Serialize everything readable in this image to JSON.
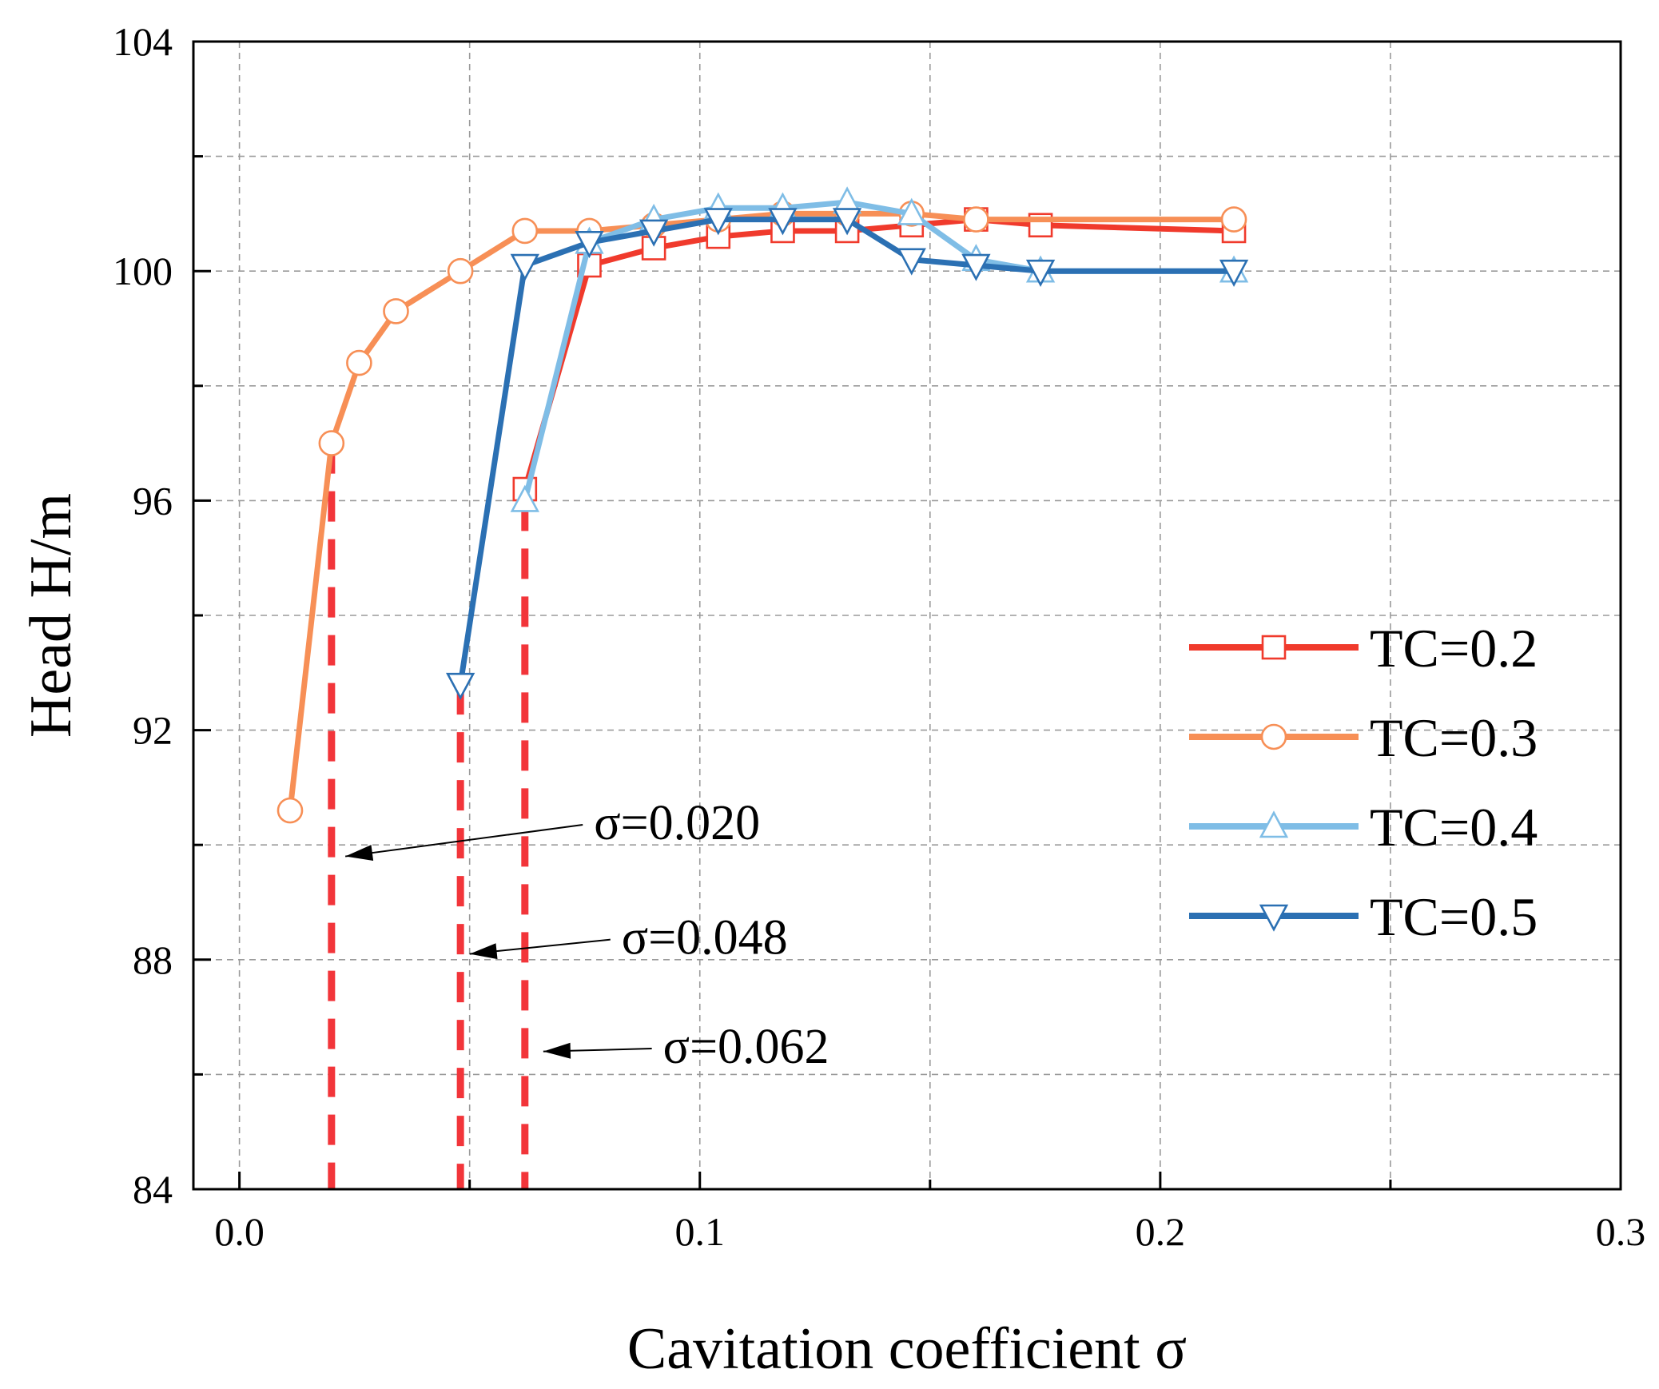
{
  "chart_data": {
    "type": "line",
    "xlabel": "Cavitation coefficient  σ",
    "ylabel": "Head  H/m",
    "xlim": [
      -0.01,
      0.3
    ],
    "ylim": [
      84,
      104
    ],
    "xticks": [
      0.0,
      0.1,
      0.2,
      0.3
    ],
    "xtick_labels": [
      "0.0",
      "0.1",
      "0.2",
      "0.3"
    ],
    "yticks": [
      84,
      88,
      92,
      96,
      100,
      104
    ],
    "ytick_labels": [
      "84",
      "88",
      "92",
      "96",
      "100",
      "104"
    ],
    "grid": true,
    "legend_position": "right",
    "series": [
      {
        "name": "TC=0.2",
        "color": "#f03a2c",
        "marker": "square",
        "x": [
          0.062,
          0.076,
          0.09,
          0.104,
          0.118,
          0.132,
          0.146,
          0.16,
          0.174,
          0.216
        ],
        "y": [
          96.2,
          100.1,
          100.4,
          100.6,
          100.7,
          100.7,
          100.8,
          100.9,
          100.8,
          100.7
        ]
      },
      {
        "name": "TC=0.3",
        "color": "#f78f56",
        "marker": "circle",
        "x": [
          0.011,
          0.02,
          0.026,
          0.034,
          0.048,
          0.062,
          0.076,
          0.09,
          0.104,
          0.118,
          0.132,
          0.146,
          0.16,
          0.216
        ],
        "y": [
          90.6,
          97.0,
          98.4,
          99.3,
          100.0,
          100.7,
          100.7,
          100.8,
          100.9,
          101.0,
          101.0,
          101.0,
          100.9,
          100.9
        ]
      },
      {
        "name": "TC=0.4",
        "color": "#7fbde6",
        "marker": "triangle-up",
        "x": [
          0.062,
          0.076,
          0.09,
          0.104,
          0.118,
          0.132,
          0.146,
          0.16,
          0.174,
          0.216
        ],
        "y": [
          96.0,
          100.5,
          100.9,
          101.1,
          101.1,
          101.2,
          101.0,
          100.2,
          100.0,
          100.0
        ]
      },
      {
        "name": "TC=0.5",
        "color": "#2b70b3",
        "marker": "triangle-down",
        "x": [
          0.048,
          0.062,
          0.076,
          0.09,
          0.104,
          0.118,
          0.132,
          0.146,
          0.16,
          0.174,
          0.216
        ],
        "y": [
          92.8,
          100.1,
          100.5,
          100.7,
          100.9,
          100.9,
          100.9,
          100.2,
          100.1,
          100.0,
          100.0
        ]
      }
    ],
    "reference_lines": [
      {
        "x": 0.02,
        "y_top": 97.0,
        "color": "#f2353a"
      },
      {
        "x": 0.048,
        "y_top": 92.8,
        "color": "#f2353a"
      },
      {
        "x": 0.062,
        "y_top": 96.0,
        "color": "#f2353a"
      }
    ],
    "annotations": [
      {
        "text": "σ=0.020",
        "text_x": 0.077,
        "text_y": 90.1,
        "arrow_to_x": 0.023,
        "arrow_to_y": 89.8
      },
      {
        "text": "σ=0.048",
        "text_x": 0.083,
        "text_y": 88.1,
        "arrow_to_x": 0.05,
        "arrow_to_y": 88.1
      },
      {
        "text": "σ=0.062",
        "text_x": 0.092,
        "text_y": 86.2,
        "arrow_to_x": 0.066,
        "arrow_to_y": 86.4
      }
    ]
  }
}
